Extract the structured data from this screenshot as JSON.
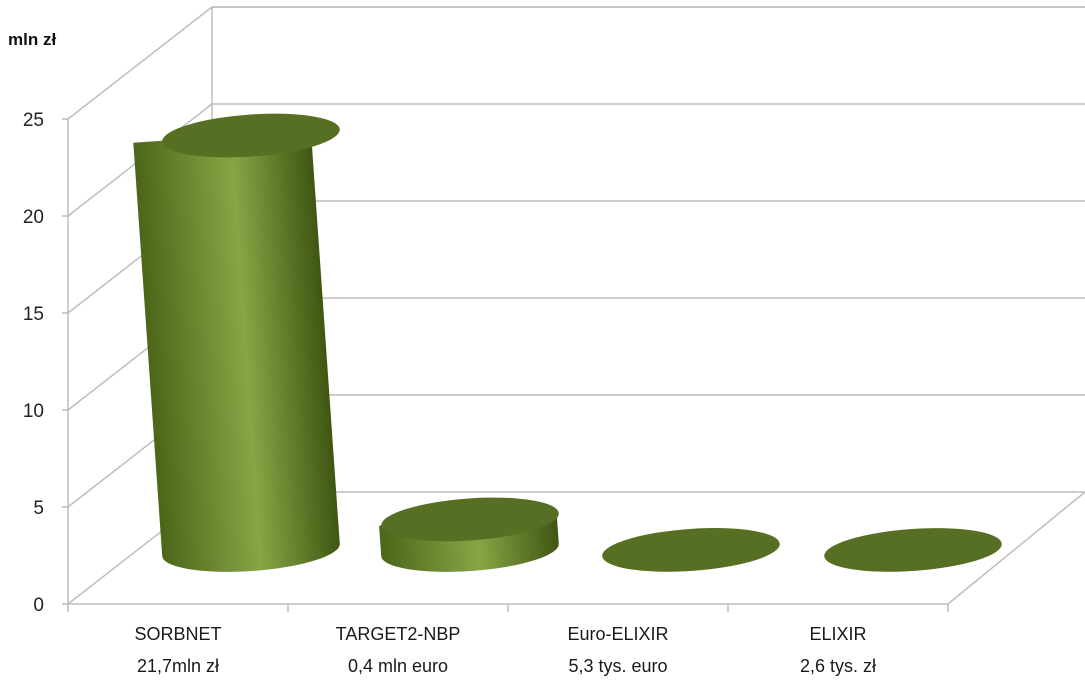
{
  "chart_data": {
    "type": "bar",
    "style": "3d-cylinder",
    "y_unit_label": "mln zł",
    "ylim": [
      0,
      25
    ],
    "y_ticks": [
      "0",
      "5",
      "10",
      "15",
      "20",
      "25"
    ],
    "grid": true,
    "categories": [
      "SORBNET",
      "TARGET2-NBP",
      "Euro-ELIXIR",
      "ELIXIR"
    ],
    "sublabels": [
      "21,7mln zł",
      "0,4 mln euro",
      "5,3 tys. euro",
      "2,6 tys. zł"
    ],
    "values": [
      21.7,
      1.6,
      0.0053,
      0.0026
    ],
    "bar_color": "#6f8f2e",
    "bar_top_color": "#566f22"
  }
}
